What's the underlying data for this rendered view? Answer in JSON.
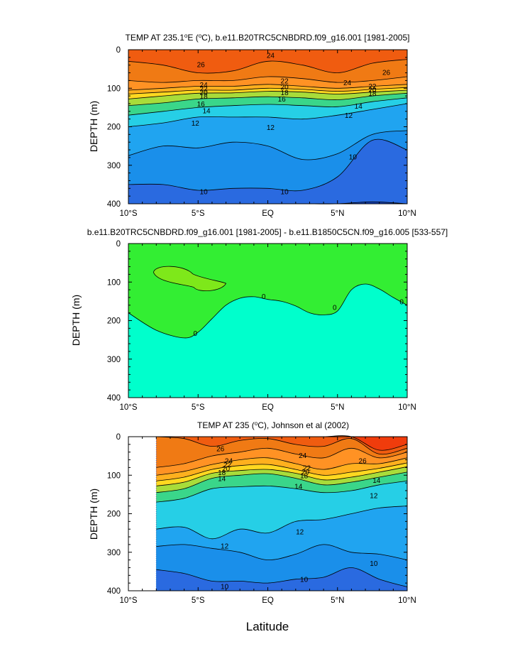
{
  "figure": {
    "xlabel": "Latitude"
  },
  "colors": {
    "temp_levels": [
      {
        "t": 9,
        "c": "#1446c8"
      },
      {
        "t": 10,
        "c": "#2a6ae0"
      },
      {
        "t": 11,
        "c": "#1a8fea"
      },
      {
        "t": 12,
        "c": "#20a4f0"
      },
      {
        "t": 13,
        "c": "#28c0f0"
      },
      {
        "t": 14,
        "c": "#26cfe6"
      },
      {
        "t": 15,
        "c": "#20d6b8"
      },
      {
        "t": 16,
        "c": "#3ad68a"
      },
      {
        "t": 17,
        "c": "#70d860"
      },
      {
        "t": 18,
        "c": "#a8dc3a"
      },
      {
        "t": 19,
        "c": "#dcdc20"
      },
      {
        "t": 20,
        "c": "#ffd820"
      },
      {
        "t": 21,
        "c": "#ffc21c"
      },
      {
        "t": 22,
        "c": "#ffb01e"
      },
      {
        "t": 23,
        "c": "#ffa026"
      },
      {
        "t": 24,
        "c": "#ff9224"
      },
      {
        "t": 25,
        "c": "#f58a1c"
      },
      {
        "t": 26,
        "c": "#f07a14"
      },
      {
        "t": 27,
        "c": "#f05c10"
      },
      {
        "t": 28,
        "c": "#f03c0c"
      }
    ],
    "diff_positive": "#33ee33",
    "diff_high": "#7ee81a",
    "diff_negative": "#00ffcc"
  },
  "chart_data": [
    {
      "type": "contour",
      "title": "TEMP AT 235.1°E (°C), b.e11.B20TRC5CNBDRD.f09_g16.001 [1981-2005]",
      "title_parts": {
        "pre": "TEMP AT 235.1",
        "deg1": "o",
        "mid": "E (",
        "deg2": "o",
        "post": "C), b.e11.B20TRC5CNBDRD.f09_g16.001 [1981-2005]"
      },
      "xlabel": "Latitude",
      "ylabel": "DEPTH (m)",
      "xlim": [
        -10,
        10
      ],
      "ylim": [
        400,
        0
      ],
      "xticks": [
        -10,
        -5,
        0,
        5,
        10
      ],
      "xtick_labels": [
        "10°S",
        "5°S",
        "EQ",
        "5°N",
        "10°N"
      ],
      "yticks": [
        0,
        100,
        200,
        300,
        400
      ],
      "ytick_labels": [
        "0",
        "100",
        "200",
        "300",
        "400"
      ],
      "isotherm_depths": {
        "x": [
          -10,
          -7.5,
          -5,
          -2.5,
          0,
          2.5,
          5,
          7.5,
          10
        ],
        "series": [
          {
            "t": 26,
            "depth_m": [
              30,
              40,
              60,
              55,
              30,
              40,
              60,
              35,
              25
            ]
          },
          {
            "t": 24,
            "depth_m": [
              80,
              85,
              80,
              80,
              70,
              75,
              85,
              80,
              70
            ]
          },
          {
            "t": 22,
            "depth_m": [
              105,
              100,
              95,
              95,
              90,
              95,
              100,
              95,
              90
            ]
          },
          {
            "t": 20,
            "depth_m": [
              115,
              110,
              105,
              105,
              100,
              103,
              108,
              103,
              98
            ]
          },
          {
            "t": 18,
            "depth_m": [
              128,
              120,
              113,
              112,
              108,
              110,
              115,
              110,
              105
            ]
          },
          {
            "t": 16,
            "depth_m": [
              145,
              138,
              128,
              125,
              122,
              125,
              130,
              120,
              113
            ]
          },
          {
            "t": 14,
            "depth_m": [
              170,
              160,
              150,
              145,
              142,
              145,
              148,
              135,
              125
            ]
          },
          {
            "t": 12,
            "depth_m": [
              200,
              190,
              175,
              175,
              175,
              180,
              170,
              155,
              140
            ]
          },
          {
            "t": 11,
            "depth_m": [
              275,
              250,
              255,
              240,
              250,
              285,
              270,
              220,
              210
            ]
          },
          {
            "t": 10,
            "depth_m": [
              350,
              350,
              365,
              360,
              360,
              365,
              330,
              235,
              260
            ]
          },
          {
            "t": 9,
            "depth_m": [
              400,
              400,
              400,
              400,
              400,
              400,
              400,
              395,
              400
            ]
          }
        ]
      },
      "contour_labels": [
        {
          "text": "26",
          "x": -4.8,
          "y": 38
        },
        {
          "text": "24",
          "x": 0.2,
          "y": 14
        },
        {
          "text": "26",
          "x": 8.5,
          "y": 58
        },
        {
          "text": "24",
          "x": -4.6,
          "y": 90
        },
        {
          "text": "22",
          "x": -4.6,
          "y": 100
        },
        {
          "text": "20",
          "x": -4.6,
          "y": 110
        },
        {
          "text": "18",
          "x": -4.6,
          "y": 120
        },
        {
          "text": "16",
          "x": -4.8,
          "y": 140
        },
        {
          "text": "14",
          "x": -4.4,
          "y": 158
        },
        {
          "text": "12",
          "x": -5.2,
          "y": 190
        },
        {
          "text": "22",
          "x": 1.2,
          "y": 80
        },
        {
          "text": "20",
          "x": 1.2,
          "y": 96
        },
        {
          "text": "18",
          "x": 1.2,
          "y": 111
        },
        {
          "text": "16",
          "x": 1.0,
          "y": 127
        },
        {
          "text": "12",
          "x": 0.2,
          "y": 201
        },
        {
          "text": "24",
          "x": 5.7,
          "y": 85
        },
        {
          "text": "22",
          "x": 7.5,
          "y": 94
        },
        {
          "text": "20",
          "x": 7.5,
          "y": 103
        },
        {
          "text": "18",
          "x": 7.5,
          "y": 112
        },
        {
          "text": "14",
          "x": 6.5,
          "y": 146
        },
        {
          "text": "12",
          "x": 5.8,
          "y": 170
        },
        {
          "text": "10",
          "x": 6.1,
          "y": 277
        },
        {
          "text": "10",
          "x": -4.6,
          "y": 368
        },
        {
          "text": "10",
          "x": 1.2,
          "y": 368
        }
      ]
    },
    {
      "type": "contour",
      "title": "b.e11.B20TRC5CNBDRD.f09_g16.001 [1981-2005] - b.e11.B1850C5CN.f09_g16.005 [533-557]",
      "xlabel": "Latitude",
      "ylabel": "DEPTH (m)",
      "xlim": [
        -10,
        10
      ],
      "ylim": [
        400,
        0
      ],
      "xticks": [
        -10,
        -5,
        0,
        5,
        10
      ],
      "xtick_labels": [
        "10°S",
        "5°S",
        "EQ",
        "5°N",
        "10°N"
      ],
      "yticks": [
        0,
        100,
        200,
        300,
        400
      ],
      "ytick_labels": [
        "0",
        "100",
        "200",
        "300",
        "400"
      ],
      "zero_contour": {
        "x": [
          -10,
          -8,
          -6,
          -5,
          -4,
          -3,
          -2,
          -1,
          0,
          1,
          2,
          3,
          4,
          5,
          6,
          7,
          8,
          9,
          10
        ],
        "depth_m": [
          180,
          225,
          245,
          230,
          195,
          160,
          142,
          138,
          145,
          150,
          162,
          180,
          185,
          175,
          120,
          105,
          118,
          140,
          160
        ]
      },
      "positive_patch": {
        "x_range": [
          -8.2,
          -3
        ],
        "depth_range": [
          60,
          125
        ]
      },
      "contour_labels": [
        {
          "text": "0",
          "x": -5.2,
          "y": 232
        },
        {
          "text": "0",
          "x": -0.3,
          "y": 136
        },
        {
          "text": "0",
          "x": 4.8,
          "y": 165
        },
        {
          "text": "0",
          "x": 9.6,
          "y": 150
        }
      ]
    },
    {
      "type": "contour",
      "title": "TEMP AT 235 (°C), Johnson et al (2002)",
      "title_parts": {
        "pre": "TEMP AT 235 (",
        "deg1": "o",
        "post": "C), Johnson et al (2002)"
      },
      "xlabel": "Latitude",
      "ylabel": "DEPTH (m)",
      "xlim": [
        -10,
        10
      ],
      "ylim": [
        400,
        0
      ],
      "x_data_start": -8,
      "xticks": [
        -10,
        -5,
        0,
        5,
        10
      ],
      "xtick_labels": [
        "10°S",
        "5°S",
        "EQ",
        "5°N",
        "10°N"
      ],
      "yticks": [
        0,
        100,
        200,
        300,
        400
      ],
      "ytick_labels": [
        "0",
        "100",
        "200",
        "300",
        "400"
      ],
      "isotherm_depths": {
        "x": [
          -8,
          -6,
          -4,
          -2,
          0,
          2,
          4,
          6,
          8,
          10
        ],
        "series": [
          {
            "t": 27,
            "depth_m": [
              0,
              0,
              0,
              0,
              0,
              0,
              0,
              0,
              35,
              20
            ]
          },
          {
            "t": 26,
            "depth_m": [
              0,
              5,
              25,
              10,
              5,
              20,
              25,
              5,
              45,
              30
            ]
          },
          {
            "t": 24,
            "depth_m": [
              80,
              70,
              50,
              40,
              30,
              45,
              55,
              30,
              55,
              40
            ]
          },
          {
            "t": 22,
            "depth_m": [
              100,
              90,
              72,
              60,
              55,
              70,
              85,
              70,
              70,
              55
            ]
          },
          {
            "t": 20,
            "depth_m": [
              115,
              105,
              85,
              75,
              72,
              85,
              100,
              92,
              82,
              68
            ]
          },
          {
            "t": 18,
            "depth_m": [
              128,
              118,
              95,
              88,
              85,
              95,
              112,
              105,
              92,
              78
            ]
          },
          {
            "t": 16,
            "depth_m": [
              145,
              135,
              108,
              100,
              96,
              108,
              125,
              118,
              105,
              92
            ]
          },
          {
            "t": 14,
            "depth_m": [
              170,
              160,
              135,
              130,
              128,
              135,
              145,
              140,
              125,
              115
            ]
          },
          {
            "t": 12,
            "depth_m": [
              240,
              235,
              265,
              240,
              250,
              220,
              215,
              200,
              185,
              180
            ]
          },
          {
            "t": 11,
            "depth_m": [
              285,
              280,
              290,
              300,
              320,
              305,
              280,
              300,
              305,
              320
            ]
          },
          {
            "t": 10,
            "depth_m": [
              345,
              355,
              375,
              375,
              380,
              370,
              365,
              340,
              370,
              390
            ]
          }
        ]
      },
      "contour_labels": [
        {
          "text": "26",
          "x": -3.4,
          "y": 30
        },
        {
          "text": "24",
          "x": -2.8,
          "y": 62
        },
        {
          "text": "22",
          "x": -2.9,
          "y": 72
        },
        {
          "text": "20",
          "x": -3.0,
          "y": 82
        },
        {
          "text": "18",
          "x": -3.3,
          "y": 92
        },
        {
          "text": "14",
          "x": -3.3,
          "y": 108
        },
        {
          "text": "24",
          "x": 2.5,
          "y": 48
        },
        {
          "text": "22",
          "x": 2.8,
          "y": 80
        },
        {
          "text": "20",
          "x": 2.7,
          "y": 90
        },
        {
          "text": "18",
          "x": 2.6,
          "y": 100
        },
        {
          "text": "14",
          "x": 2.2,
          "y": 128
        },
        {
          "text": "26",
          "x": 6.8,
          "y": 62
        },
        {
          "text": "14",
          "x": 7.8,
          "y": 112
        },
        {
          "text": "12",
          "x": 7.6,
          "y": 152
        },
        {
          "text": "12",
          "x": 2.3,
          "y": 246
        },
        {
          "text": "12",
          "x": -3.1,
          "y": 283
        },
        {
          "text": "10",
          "x": 7.6,
          "y": 328
        },
        {
          "text": "10",
          "x": 2.6,
          "y": 370
        },
        {
          "text": "10",
          "x": -3.1,
          "y": 388
        }
      ]
    }
  ]
}
